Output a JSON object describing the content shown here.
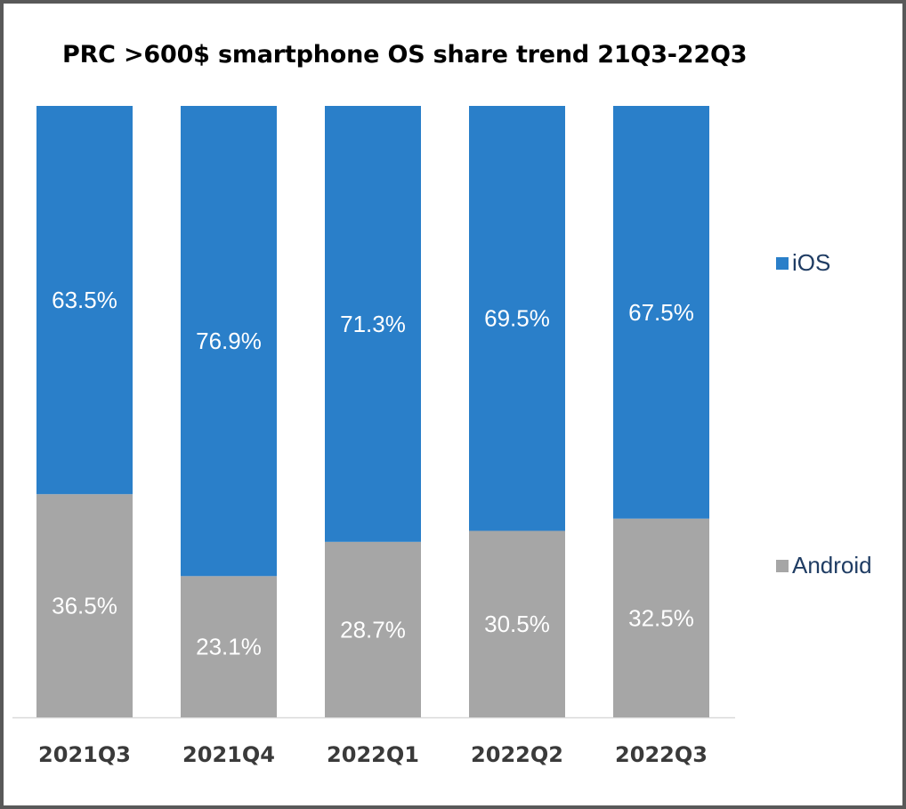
{
  "chart_data": {
    "type": "bar",
    "stacked": true,
    "title": "PRC >600$ smartphone OS share trend 21Q3-22Q3",
    "xlabel": "",
    "ylabel": "",
    "ylim": [
      0,
      100
    ],
    "categories": [
      "2021Q3",
      "2021Q4",
      "2022Q1",
      "2022Q2",
      "2022Q3"
    ],
    "series": [
      {
        "name": "Android",
        "color": "#a6a6a6",
        "values": [
          36.5,
          23.1,
          28.7,
          30.5,
          32.5
        ],
        "labels": [
          "36.5%",
          "23.1%",
          "28.7%",
          "30.5%",
          "32.5%"
        ]
      },
      {
        "name": "iOS",
        "color": "#2a7fc9",
        "values": [
          63.5,
          76.9,
          71.3,
          69.5,
          67.5
        ],
        "labels": [
          "63.5%",
          "76.9%",
          "71.3%",
          "69.5%",
          "67.5%"
        ]
      }
    ],
    "legend": {
      "position": "right",
      "items": [
        "iOS",
        "Android"
      ]
    },
    "grid": false
  }
}
